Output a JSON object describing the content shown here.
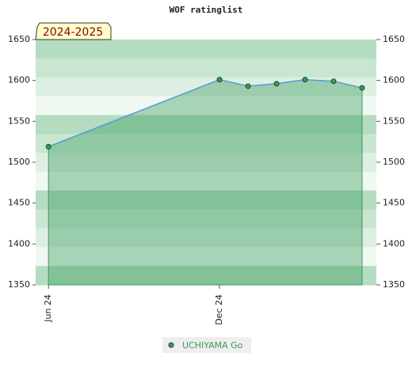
{
  "chart_data": {
    "type": "line",
    "title": "WOF ratinglist",
    "badge": "2024-2025",
    "x": [
      0,
      6,
      7,
      8,
      9,
      10,
      11
    ],
    "xlim": [
      -0.45,
      11.5
    ],
    "xticks": [
      {
        "value": 0,
        "label": "Jun 24"
      },
      {
        "value": 6,
        "label": "Dec 24"
      }
    ],
    "series": [
      {
        "name": "UCHIYAMA Go",
        "color": "#3a9a5c",
        "values": [
          1519,
          1601,
          1593,
          1596,
          1601,
          1599,
          1591
        ]
      }
    ],
    "ylim": [
      1350,
      1650
    ],
    "yticks": [
      1350,
      1400,
      1450,
      1500,
      1550,
      1600,
      1650
    ],
    "y2lim": [
      1350,
      1650
    ],
    "y2ticks": [
      1350,
      1400,
      1450,
      1500,
      1550,
      1600,
      1650
    ]
  }
}
